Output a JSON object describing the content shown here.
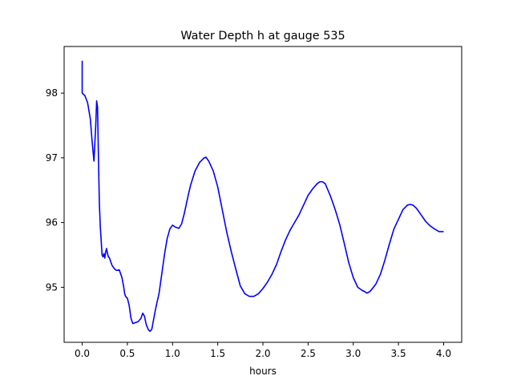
{
  "chart_data": {
    "type": "line",
    "title": "Water Depth h at gauge 535",
    "xlabel": "hours",
    "ylabel": "",
    "xlim": [
      -0.2,
      4.2
    ],
    "ylim": [
      94.15,
      98.72
    ],
    "xticks": [
      0.0,
      0.5,
      1.0,
      1.5,
      2.0,
      2.5,
      3.0,
      3.5,
      4.0
    ],
    "xtick_labels": [
      "0.0",
      "0.5",
      "1.0",
      "1.5",
      "2.0",
      "2.5",
      "3.0",
      "3.5",
      "4.0"
    ],
    "yticks": [
      95,
      96,
      97,
      98
    ],
    "ytick_labels": [
      "95",
      "96",
      "97",
      "98"
    ],
    "grid": false,
    "line_color": "#0000ff",
    "series": [
      {
        "x": [
          0.0,
          0.0,
          0.0,
          0.03,
          0.06,
          0.09,
          0.11,
          0.13,
          0.15,
          0.16,
          0.17,
          0.18,
          0.19,
          0.2,
          0.21,
          0.22,
          0.23,
          0.24,
          0.25,
          0.26,
          0.27,
          0.28,
          0.29,
          0.3,
          0.31,
          0.33,
          0.36,
          0.38,
          0.41,
          0.44,
          0.46,
          0.47,
          0.48,
          0.5,
          0.52,
          0.54,
          0.56,
          0.58,
          0.6,
          0.62,
          0.65,
          0.67,
          0.69,
          0.7,
          0.71,
          0.73,
          0.75,
          0.77,
          0.79,
          0.81,
          0.83,
          0.85,
          0.88,
          0.91,
          0.94,
          0.97,
          1.0,
          1.03,
          1.07,
          1.1,
          1.13,
          1.17,
          1.2,
          1.25,
          1.3,
          1.35,
          1.37,
          1.4,
          1.45,
          1.5,
          1.55,
          1.6,
          1.65,
          1.7,
          1.75,
          1.8,
          1.85,
          1.9,
          1.95,
          2.0,
          2.05,
          2.1,
          2.15,
          2.2,
          2.25,
          2.3,
          2.35,
          2.4,
          2.45,
          2.5,
          2.55,
          2.6,
          2.63,
          2.66,
          2.69,
          2.72,
          2.75,
          2.8,
          2.85,
          2.9,
          2.95,
          3.0,
          3.05,
          3.1,
          3.13,
          3.15,
          3.18,
          3.2,
          3.25,
          3.3,
          3.35,
          3.4,
          3.45,
          3.5,
          3.55,
          3.6,
          3.63,
          3.66,
          3.7,
          3.75,
          3.8,
          3.85,
          3.9,
          3.95,
          4.0
        ],
        "y": [
          98.5,
          98.25,
          98.0,
          97.96,
          97.85,
          97.6,
          97.25,
          96.95,
          97.5,
          97.88,
          97.78,
          97.0,
          96.3,
          95.95,
          95.72,
          95.5,
          95.47,
          95.52,
          95.45,
          95.55,
          95.6,
          95.52,
          95.47,
          95.46,
          95.42,
          95.34,
          95.28,
          95.26,
          95.27,
          95.15,
          95.0,
          94.9,
          94.86,
          94.83,
          94.72,
          94.52,
          94.44,
          94.45,
          94.46,
          94.47,
          94.52,
          94.6,
          94.55,
          94.48,
          94.42,
          94.35,
          94.32,
          94.35,
          94.5,
          94.65,
          94.78,
          94.9,
          95.2,
          95.5,
          95.75,
          95.9,
          95.96,
          95.93,
          95.91,
          95.98,
          96.14,
          96.4,
          96.58,
          96.8,
          96.93,
          97.0,
          97.01,
          96.95,
          96.8,
          96.55,
          96.2,
          95.85,
          95.55,
          95.28,
          95.02,
          94.9,
          94.86,
          94.86,
          94.9,
          94.98,
          95.08,
          95.2,
          95.35,
          95.55,
          95.73,
          95.88,
          96.0,
          96.12,
          96.27,
          96.42,
          96.52,
          96.6,
          96.63,
          96.63,
          96.6,
          96.5,
          96.4,
          96.2,
          95.97,
          95.68,
          95.38,
          95.15,
          95.0,
          94.95,
          94.93,
          94.91,
          94.93,
          94.96,
          95.05,
          95.2,
          95.42,
          95.67,
          95.9,
          96.05,
          96.2,
          96.27,
          96.28,
          96.27,
          96.22,
          96.12,
          96.02,
          95.95,
          95.9,
          95.86,
          95.86
        ]
      }
    ]
  }
}
